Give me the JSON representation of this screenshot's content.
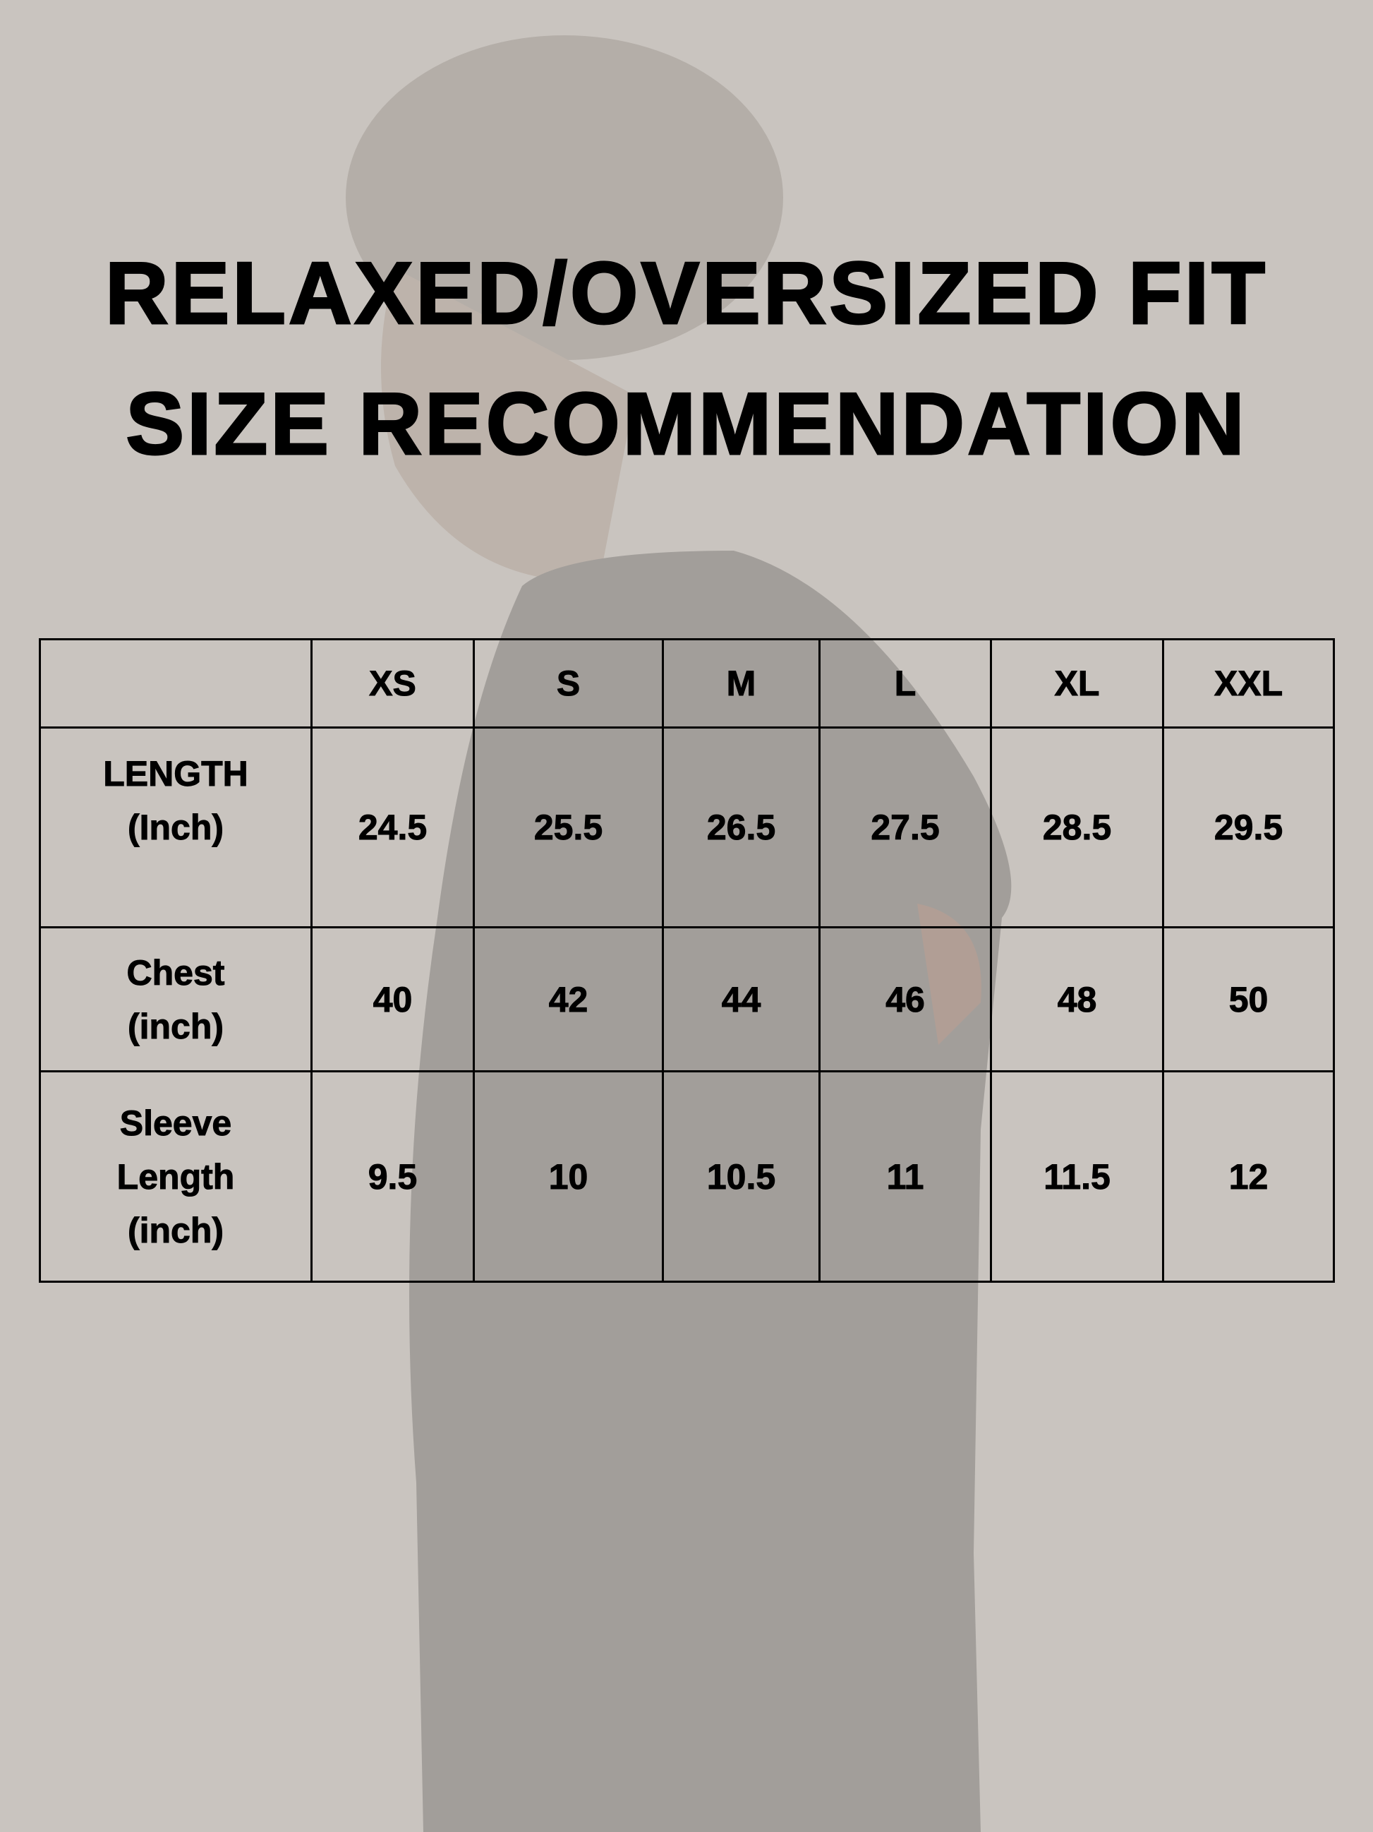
{
  "title": {
    "line1": "RELAXED/OVERSIZED FIT",
    "line2": "SIZE RECOMMENDATION"
  },
  "colors": {
    "background": "#c9c4bf",
    "silhouette": "#a29e9a",
    "text": "#000000"
  },
  "table": {
    "sizes": [
      "XS",
      "S",
      "M",
      "L",
      "XL",
      "XXL"
    ],
    "rows": [
      {
        "label": [
          "LENGTH",
          "(Inch)"
        ],
        "values": [
          "24.5",
          "25.5",
          "26.5",
          "27.5",
          "28.5",
          "29.5"
        ]
      },
      {
        "label": [
          "Chest",
          "(inch)"
        ],
        "values": [
          "40",
          "42",
          "44",
          "46",
          "48",
          "50"
        ]
      },
      {
        "label": [
          "Sleeve",
          "Length",
          "(inch)"
        ],
        "values": [
          "9.5",
          "10",
          "10.5",
          "11",
          "11.5",
          "12"
        ]
      }
    ]
  }
}
